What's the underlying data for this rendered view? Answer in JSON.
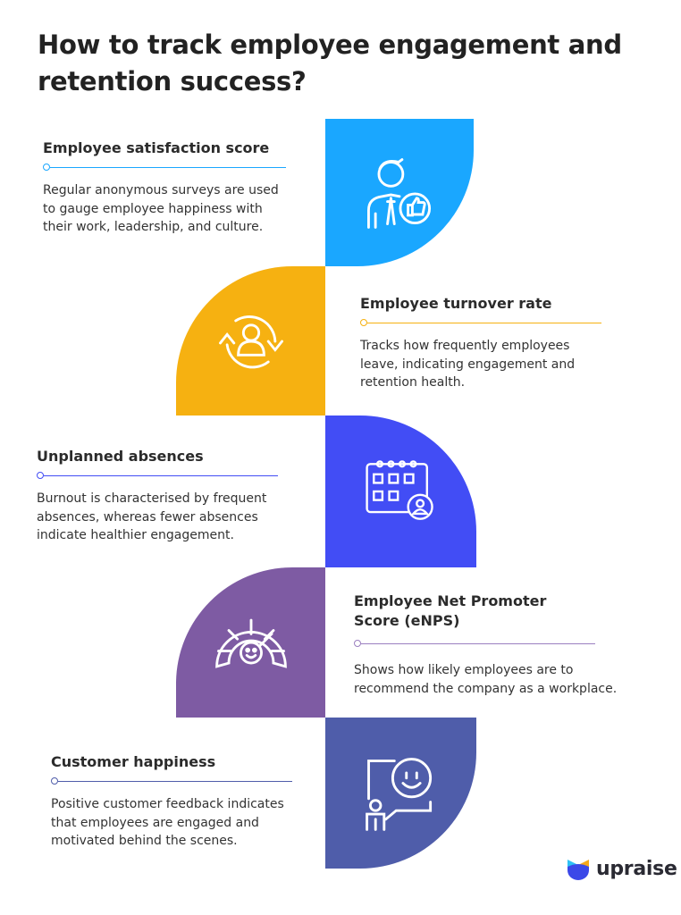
{
  "title": "How to track employee engagement and retention success?",
  "colors": {
    "blue": "#1AA7FF",
    "yellow": "#F6B111",
    "violet": "#424DF5",
    "purple": "#7E5BA3",
    "indigo": "#4F5DAA"
  },
  "items": [
    {
      "heading": "Employee satisfaction score",
      "body": "Regular anonymous surveys are used to gauge employee happiness with their work, leadership, and culture.",
      "icon": "employee-thumbs-up-icon"
    },
    {
      "heading": "Employee turnover rate",
      "body": "Tracks how frequently employees leave, indicating engagement and retention health.",
      "icon": "person-cycle-icon"
    },
    {
      "heading": "Unplanned absences",
      "body": "Burnout is characterised by frequent absences, whereas fewer absences indicate healthier engagement.",
      "icon": "calendar-attendance-icon"
    },
    {
      "heading": "Employee Net Promoter Score (eNPS)",
      "body": "Shows how likely employees are to recommend the company as a workplace.",
      "icon": "satisfaction-gauge-icon"
    },
    {
      "heading": "Customer happiness",
      "body": "Positive customer feedback indicates that employees are engaged and motivated behind the scenes.",
      "icon": "customer-smile-icon"
    }
  ],
  "logo": {
    "text": "upraise"
  }
}
